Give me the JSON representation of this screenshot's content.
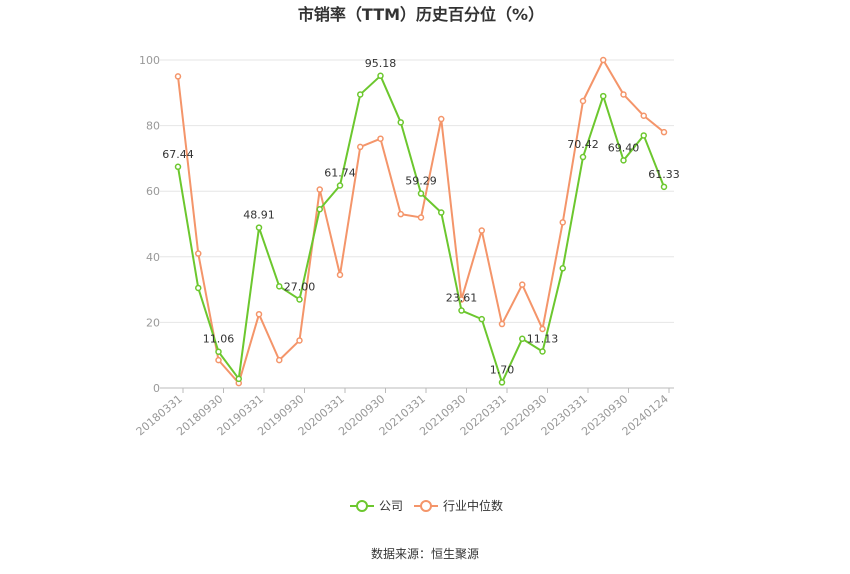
{
  "chart_data": {
    "type": "line",
    "title": "市销率（TTM）历史百分位（%）",
    "source": "数据来源：恒生聚源",
    "ylim": [
      0,
      100
    ],
    "yticks": [
      "0",
      "20",
      "40",
      "60",
      "80",
      "100"
    ],
    "xtick_labels": [
      "20180331",
      "20180930",
      "20190331",
      "20190930",
      "20200331",
      "20200930",
      "20210331",
      "20210930",
      "20220331",
      "20220930",
      "20230331",
      "20230930",
      "20240124"
    ],
    "grid": true,
    "legend_position": "bottom",
    "series": [
      {
        "name": "公司",
        "color": "#6cc72e",
        "values": [
          67.44,
          30.5,
          11.06,
          2.8,
          48.91,
          31.0,
          27.0,
          54.5,
          61.74,
          89.5,
          95.18,
          81.0,
          59.29,
          53.5,
          23.61,
          21.0,
          1.7,
          15.0,
          11.13,
          36.5,
          70.42,
          89.0,
          69.4,
          77.0,
          61.33
        ],
        "labels": [
          "67.44",
          null,
          "11.06",
          null,
          "48.91",
          null,
          "27.00",
          null,
          "61.74",
          null,
          "95.18",
          null,
          "59.29",
          null,
          "23.61",
          null,
          "1.70",
          null,
          "11.13",
          null,
          "70.42",
          null,
          "69.40",
          null,
          "61.33"
        ]
      },
      {
        "name": "行业中位数",
        "color": "#f4956a",
        "values": [
          95.0,
          41.0,
          8.5,
          1.5,
          22.5,
          8.5,
          14.5,
          60.5,
          34.5,
          73.5,
          76.0,
          53.0,
          52.0,
          82.0,
          27.0,
          48.0,
          19.5,
          31.5,
          18.0,
          50.5,
          87.5,
          100.0,
          89.5,
          83.0,
          78.0
        ]
      }
    ]
  }
}
